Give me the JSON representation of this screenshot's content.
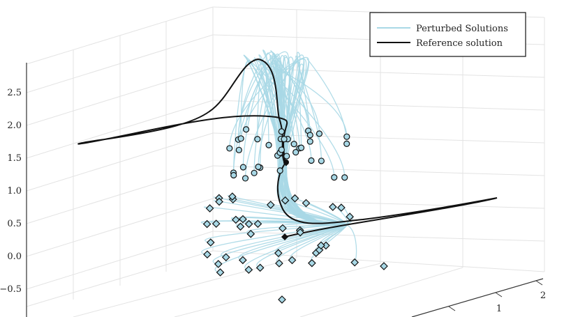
{
  "chart_data": {
    "type": "line",
    "dimensions": "3d",
    "title": "",
    "xlabel": "",
    "ylabel": "",
    "zlabel": "",
    "z_ticks": [
      "−0.5",
      "0.0",
      "0.5",
      "1.0",
      "1.5",
      "2.0",
      "2.5"
    ],
    "z_tick_values": [
      -0.5,
      0.0,
      0.5,
      1.0,
      1.5,
      2.0,
      2.5
    ],
    "y_ticks": [
      "1",
      "2"
    ],
    "legend_position": "top-right",
    "grid": true,
    "series": [
      {
        "name": "Perturbed Solutions",
        "color": "#a8d8e6",
        "style": "line",
        "count": 40
      },
      {
        "name": "Reference solution",
        "color": "#111111",
        "style": "line"
      }
    ],
    "initial_markers": {
      "shape": "circle",
      "fill": "#a8d8e6",
      "edge": "#111111",
      "count": 38
    },
    "final_markers": {
      "shape": "diamond",
      "fill": "#a8d8e6",
      "edge": "#111111",
      "count": 40
    },
    "reference_markers": {
      "start_shape": "circle",
      "end_shape": "diamond",
      "fill": "#111111"
    }
  }
}
